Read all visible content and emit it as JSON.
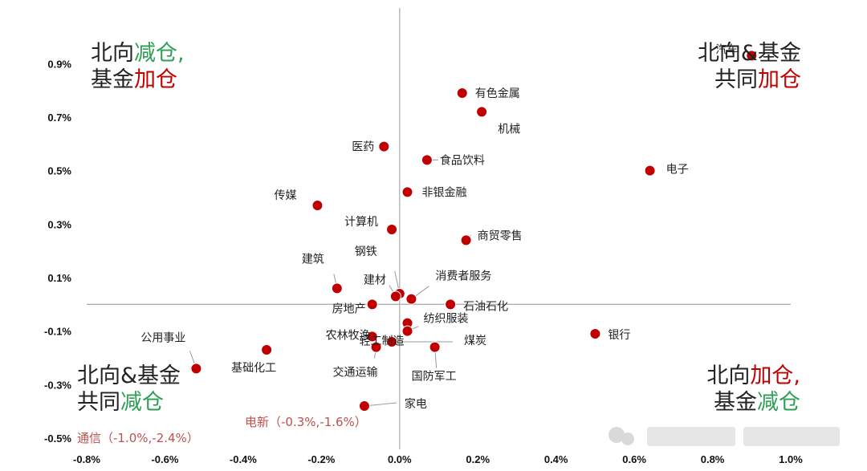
{
  "chart_data": {
    "type": "scatter",
    "title": "",
    "xlabel": "",
    "ylabel": "",
    "xlim": [
      -0.8,
      1.0
    ],
    "ylim": [
      -0.5,
      1.0
    ],
    "grid": false,
    "x_ticks": [
      "-0.8%",
      "-0.6%",
      "-0.4%",
      "-0.2%",
      "0.0%",
      "0.2%",
      "0.4%",
      "0.6%",
      "0.8%",
      "1.0%"
    ],
    "y_ticks": [
      "0.9%",
      "0.7%",
      "0.5%",
      "0.3%",
      "0.1%",
      "-0.1%",
      "-0.3%",
      "-0.5%"
    ],
    "point_color": "#c00000",
    "points": [
      {
        "name": "汽车",
        "x": 0.9,
        "y": 0.93
      },
      {
        "name": "有色金属",
        "x": 0.16,
        "y": 0.79
      },
      {
        "name": "机械",
        "x": 0.21,
        "y": 0.72
      },
      {
        "name": "医药",
        "x": -0.04,
        "y": 0.59
      },
      {
        "name": "食品饮料",
        "x": 0.07,
        "y": 0.54
      },
      {
        "name": "电子",
        "x": 0.64,
        "y": 0.5
      },
      {
        "name": "非银金融",
        "x": 0.02,
        "y": 0.42
      },
      {
        "name": "传媒",
        "x": -0.21,
        "y": 0.37
      },
      {
        "name": "计算机",
        "x": -0.02,
        "y": 0.28
      },
      {
        "name": "商贸零售",
        "x": 0.17,
        "y": 0.24
      },
      {
        "name": "钢铁",
        "x": 0.0,
        "y": 0.04
      },
      {
        "name": "消费者服务",
        "x": 0.03,
        "y": 0.02
      },
      {
        "name": "建筑",
        "x": -0.16,
        "y": 0.06
      },
      {
        "name": "建材",
        "x": -0.01,
        "y": 0.03
      },
      {
        "name": "房地产",
        "x": -0.07,
        "y": 0.0
      },
      {
        "name": "石油石化",
        "x": 0.13,
        "y": 0.0
      },
      {
        "name": "轻工制造",
        "x": 0.02,
        "y": -0.07
      },
      {
        "name": "纺织服装",
        "x": 0.02,
        "y": -0.1
      },
      {
        "name": "银行",
        "x": 0.5,
        "y": -0.11
      },
      {
        "name": "农林牧渔",
        "x": -0.07,
        "y": -0.12
      },
      {
        "name": "公用事业",
        "x": -0.52,
        "y": -0.24
      },
      {
        "name": "基础化工",
        "x": -0.34,
        "y": -0.17
      },
      {
        "name": "交通运输",
        "x": -0.06,
        "y": -0.16
      },
      {
        "name": "煤炭",
        "x": -0.02,
        "y": -0.14
      },
      {
        "name": "国防军工",
        "x": 0.09,
        "y": -0.16
      },
      {
        "name": "家电",
        "x": -0.09,
        "y": -0.38
      }
    ],
    "offchart_notes": [
      "电新（-0.3%,-1.6%）",
      "通信（-1.0%,-2.4%）"
    ],
    "note_color": "#c0504d"
  },
  "quadrants": {
    "top_left": [
      [
        {
          "t": "北向",
          "c": "dark"
        },
        {
          "t": "减仓,",
          "c": "green"
        }
      ],
      [
        {
          "t": "基金",
          "c": "dark"
        },
        {
          "t": "加仓",
          "c": "red"
        }
      ]
    ],
    "top_right": [
      [
        {
          "t": "北向&基金",
          "c": "dark"
        }
      ],
      [
        {
          "t": "共同",
          "c": "dark"
        },
        {
          "t": "加仓",
          "c": "red"
        }
      ]
    ],
    "bottom_left": [
      [
        {
          "t": "北向&基金",
          "c": "dark"
        }
      ],
      [
        {
          "t": "共同",
          "c": "dark"
        },
        {
          "t": "减仓",
          "c": "green"
        }
      ]
    ],
    "bottom_right": [
      [
        {
          "t": "北向",
          "c": "dark"
        },
        {
          "t": "加仓,",
          "c": "red"
        }
      ],
      [
        {
          "t": "基金",
          "c": "dark"
        },
        {
          "t": "减仓",
          "c": "green"
        }
      ]
    ]
  },
  "colors": {
    "dark": "#222222",
    "red": "#c00000",
    "green": "#2e9e55",
    "axis": "#b0b0b0"
  }
}
